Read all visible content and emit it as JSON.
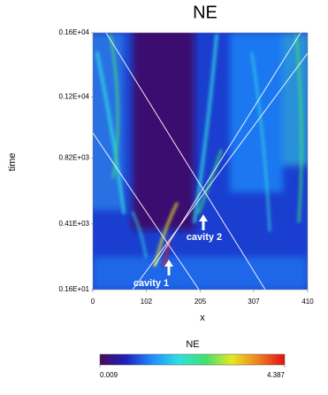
{
  "chart_data": {
    "type": "heatmap",
    "title": "NE",
    "x_label": "x",
    "y_label": "time",
    "xlim": [
      0,
      410
    ],
    "xticks": [
      0,
      102,
      205,
      307,
      410
    ],
    "ylim": [
      1.6,
      1600
    ],
    "yticks": [
      {
        "value": 1600,
        "label": "0.16E+04"
      },
      {
        "value": 1200,
        "label": "0.12E+04"
      },
      {
        "value": 820,
        "label": "0.82E+03"
      },
      {
        "value": 410,
        "label": "0.41E+03"
      },
      {
        "value": 1.6,
        "label": "0.16E+01"
      }
    ],
    "colormap": [
      "#4a0a5a",
      "#2020c0",
      "#1e90ff",
      "#30e0e0",
      "#40e070",
      "#e8e820",
      "#f08020",
      "#e01010"
    ],
    "annotations": [
      "cavity 1",
      "cavity 2"
    ],
    "colorbar": {
      "title": "NE",
      "lim": [
        0.009,
        4.387
      ],
      "ticks": [
        0.009,
        4.387
      ]
    }
  }
}
